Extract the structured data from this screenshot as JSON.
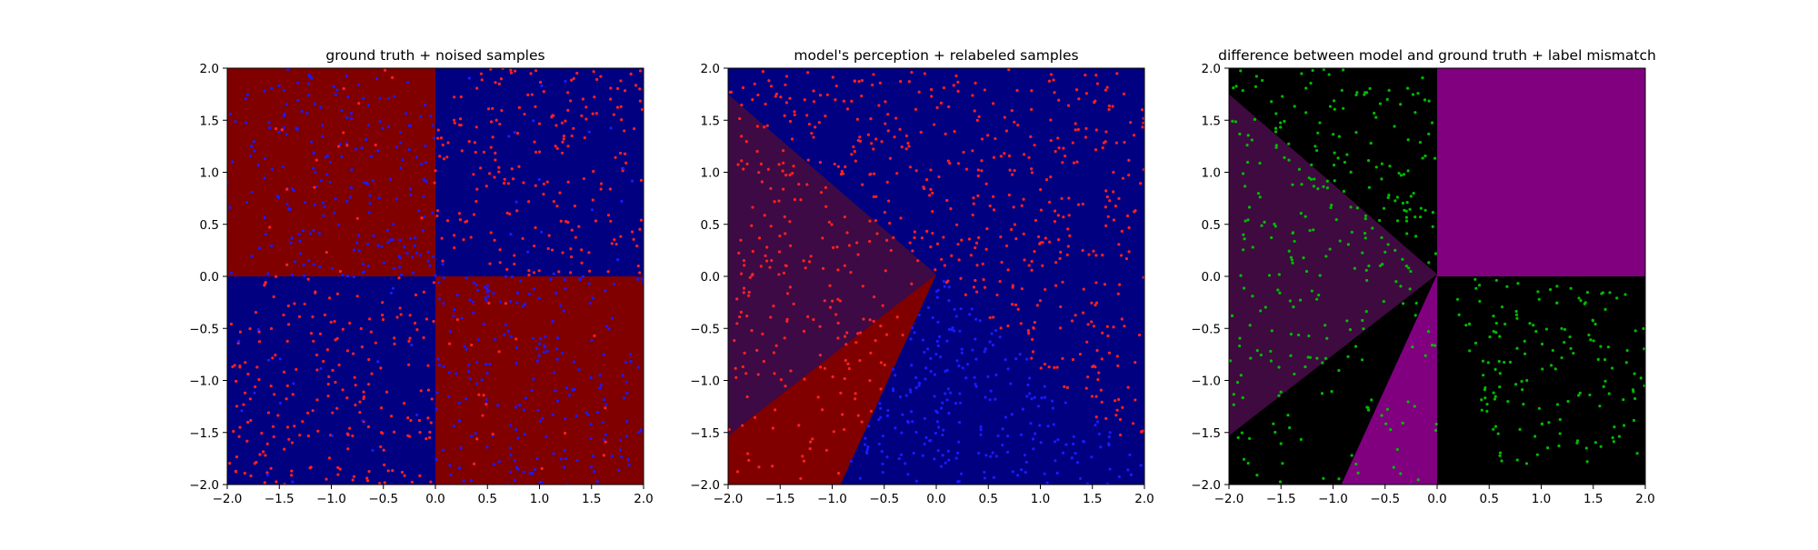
{
  "figure": {
    "background": "#ffffff"
  },
  "chart_data": [
    {
      "type": "scatter",
      "title": "ground truth + noised samples",
      "xlabel": "",
      "ylabel": "",
      "xlim": [
        -2.0,
        2.0
      ],
      "ylim": [
        -2.0,
        2.0
      ],
      "xticks": [
        "−2.0",
        "−1.5",
        "−1.0",
        "−0.5",
        "0.0",
        "0.5",
        "1.0",
        "1.5",
        "2.0"
      ],
      "yticks": [
        "−2.0",
        "−1.5",
        "−1.0",
        "−0.5",
        "0.0",
        "0.5",
        "1.0",
        "1.5",
        "2.0"
      ],
      "grid": false,
      "background_regions": [
        {
          "label": "top-left quadrant",
          "color": "#800000",
          "polygon": [
            [
              -2,
              0
            ],
            [
              0,
              0
            ],
            [
              0,
              2
            ],
            [
              -2,
              2
            ]
          ]
        },
        {
          "label": "top-right quadrant",
          "color": "#000080",
          "polygon": [
            [
              0,
              0
            ],
            [
              2,
              0
            ],
            [
              2,
              2
            ],
            [
              0,
              2
            ]
          ]
        },
        {
          "label": "bottom-left quadrant",
          "color": "#000080",
          "polygon": [
            [
              -2,
              -2
            ],
            [
              0,
              -2
            ],
            [
              0,
              0
            ],
            [
              -2,
              0
            ]
          ]
        },
        {
          "label": "bottom-right quadrant",
          "color": "#800000",
          "polygon": [
            [
              0,
              -2
            ],
            [
              2,
              -2
            ],
            [
              2,
              0
            ],
            [
              0,
              0
            ]
          ]
        }
      ],
      "sample_groups": [
        {
          "color": "#1a1aff",
          "count": 210,
          "region": {
            "x": [
              -2,
              0
            ],
            "y": [
              0,
              2
            ]
          }
        },
        {
          "color": "#ff2020",
          "count": 20,
          "region": {
            "x": [
              -2,
              0
            ],
            "y": [
              0,
              2
            ]
          }
        },
        {
          "color": "#ff2020",
          "count": 210,
          "region": {
            "x": [
              0,
              2
            ],
            "y": [
              0,
              2
            ]
          }
        },
        {
          "color": "#1a1aff",
          "count": 20,
          "region": {
            "x": [
              0,
              2
            ],
            "y": [
              0,
              2
            ]
          }
        },
        {
          "color": "#ff2020",
          "count": 210,
          "region": {
            "x": [
              -2,
              0
            ],
            "y": [
              -2,
              0
            ]
          }
        },
        {
          "color": "#1a1aff",
          "count": 20,
          "region": {
            "x": [
              -2,
              0
            ],
            "y": [
              -2,
              0
            ]
          }
        },
        {
          "color": "#1a1aff",
          "count": 210,
          "region": {
            "x": [
              0,
              2
            ],
            "y": [
              -2,
              0
            ]
          }
        },
        {
          "color": "#ff2020",
          "count": 20,
          "region": {
            "x": [
              0,
              2
            ],
            "y": [
              -2,
              0
            ]
          }
        }
      ]
    },
    {
      "type": "scatter",
      "title": "model's perception + relabeled samples",
      "xlabel": "",
      "ylabel": "",
      "xlim": [
        -2.0,
        2.0
      ],
      "ylim": [
        -2.0,
        2.0
      ],
      "xticks": [
        "−2.0",
        "−1.5",
        "−1.0",
        "−0.5",
        "0.0",
        "0.5",
        "1.0",
        "1.5",
        "2.0"
      ],
      "yticks": [
        "−2.0",
        "−1.5",
        "−1.0",
        "−0.5",
        "0.0",
        "0.5",
        "1.0",
        "1.5",
        "2.0"
      ],
      "grid": false,
      "background_regions": [
        {
          "label": "blue background",
          "color": "#000080",
          "polygon": [
            [
              -2,
              -2
            ],
            [
              2,
              -2
            ],
            [
              2,
              2
            ],
            [
              -2,
              2
            ]
          ]
        },
        {
          "label": "upper-left wedge",
          "color": "#3d0a45",
          "polygon": [
            [
              -2,
              1.75
            ],
            [
              0,
              0.02
            ],
            [
              -2,
              -1.53
            ]
          ]
        },
        {
          "label": "lower-left wedge",
          "color": "#800000",
          "polygon": [
            [
              -2,
              -1.53
            ],
            [
              0,
              0.02
            ],
            [
              -0.92,
              -2
            ],
            [
              -2,
              -2
            ]
          ]
        }
      ],
      "sample_groups": [
        {
          "color": "#ff2020",
          "count": 440,
          "region": {
            "polygon": [
              [
                -2,
                1.75
              ],
              [
                -2,
                2
              ],
              [
                2,
                2
              ],
              [
                2,
                -1.8
              ],
              [
                0,
                0.02
              ]
            ]
          }
        },
        {
          "color": "#1a1aff",
          "count": 240,
          "region": {
            "polygon": [
              [
                0,
                0.02
              ],
              [
                2,
                -1.8
              ],
              [
                2,
                -2
              ],
              [
                -0.92,
                -2
              ]
            ]
          }
        },
        {
          "color": "#ff2020",
          "count": 150,
          "region": {
            "polygon": [
              [
                -2,
                1.75
              ],
              [
                0,
                0.02
              ],
              [
                -2,
                -1.53
              ]
            ]
          }
        },
        {
          "color": "#ff2020",
          "count": 50,
          "region": {
            "polygon": [
              [
                -2,
                -1.53
              ],
              [
                0,
                0.02
              ],
              [
                -0.92,
                -2
              ],
              [
                -2,
                -2
              ]
            ]
          }
        }
      ]
    },
    {
      "type": "scatter",
      "title": "difference between model and ground truth + label mismatch",
      "xlabel": "",
      "ylabel": "",
      "xlim": [
        -2.0,
        2.0
      ],
      "ylim": [
        -2.0,
        2.0
      ],
      "xticks": [
        "−2.0",
        "−1.5",
        "−1.0",
        "−0.5",
        "0.0",
        "0.5",
        "1.0",
        "1.5",
        "2.0"
      ],
      "yticks": [
        "−2.0",
        "−1.5",
        "−1.0",
        "−0.5",
        "0.0",
        "0.5",
        "1.0",
        "1.5",
        "2.0"
      ],
      "grid": false,
      "background_regions": [
        {
          "label": "black background",
          "color": "#000000",
          "polygon": [
            [
              -2,
              -2
            ],
            [
              2,
              -2
            ],
            [
              2,
              2
            ],
            [
              -2,
              2
            ]
          ]
        },
        {
          "label": "top-right mismatch",
          "color": "#800080",
          "polygon": [
            [
              0,
              0
            ],
            [
              2,
              0
            ],
            [
              2,
              2
            ],
            [
              0,
              2
            ]
          ]
        },
        {
          "label": "left wedge",
          "color": "#3f0a40",
          "polygon": [
            [
              -2,
              1.75
            ],
            [
              0,
              0.02
            ],
            [
              -2,
              -1.53
            ]
          ]
        },
        {
          "label": "bottom wedge",
          "color": "#800080",
          "polygon": [
            [
              -0.92,
              -2
            ],
            [
              0,
              0.02
            ],
            [
              0,
              -2
            ]
          ]
        }
      ],
      "sample_groups": [
        {
          "color": "#00bb00",
          "count": 140,
          "region": {
            "polygon": [
              [
                -2,
                1.75
              ],
              [
                0,
                0.02
              ],
              [
                -2,
                -1.53
              ]
            ]
          }
        },
        {
          "color": "#00bb00",
          "count": 110,
          "region": {
            "polygon": [
              [
                -2,
                2
              ],
              [
                0,
                2
              ],
              [
                0,
                0.02
              ],
              [
                -2,
                1.75
              ]
            ]
          }
        },
        {
          "color": "#00bb00",
          "count": 150,
          "region": {
            "polygon": [
              [
                0,
                0
              ],
              [
                2,
                -0.1
              ],
              [
                2,
                -1.8
              ],
              [
                0.6,
                -1.8
              ]
            ]
          }
        },
        {
          "color": "#00bb00",
          "count": 30,
          "region": {
            "polygon": [
              [
                -2,
                -1.53
              ],
              [
                0,
                0.02
              ],
              [
                -0.92,
                -2
              ],
              [
                -2,
                -2
              ]
            ]
          }
        },
        {
          "color": "#00bb00",
          "count": 20,
          "region": {
            "polygon": [
              [
                -0.92,
                -2
              ],
              [
                0,
                0.02
              ],
              [
                0,
                -2
              ]
            ]
          }
        }
      ]
    }
  ]
}
